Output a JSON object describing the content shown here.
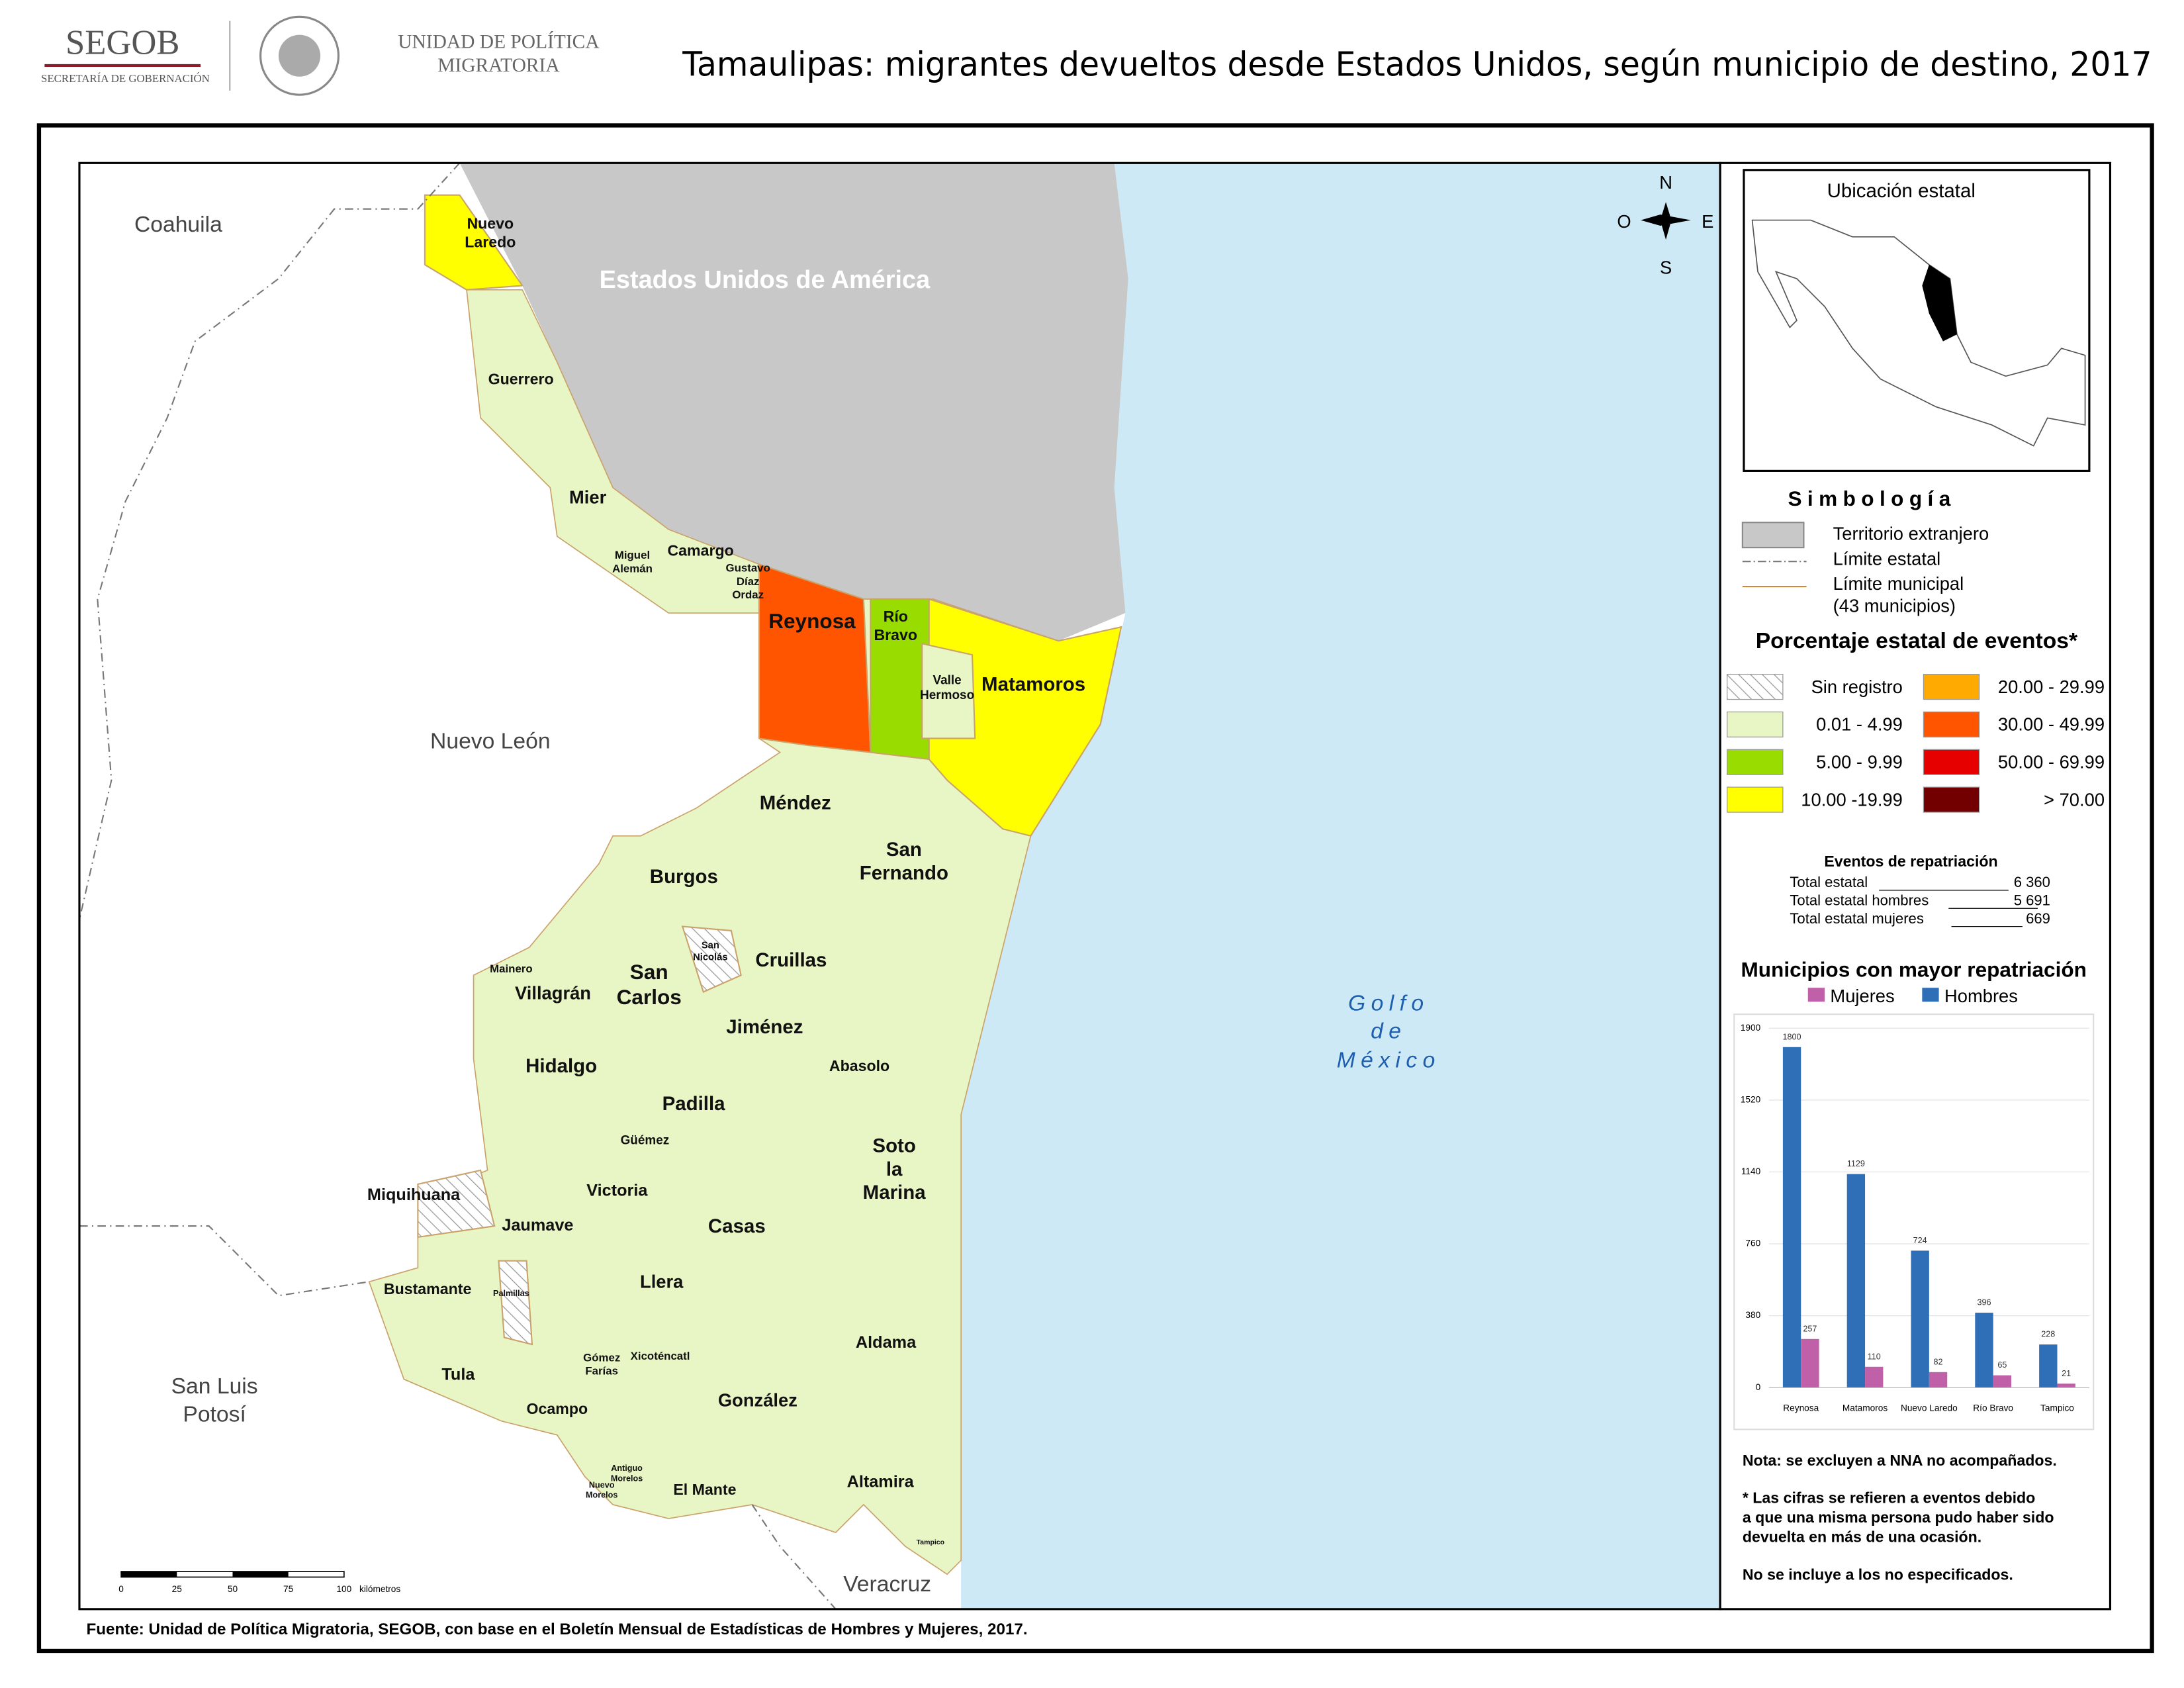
{
  "header": {
    "org": "SEGOB",
    "org_sub": "SECRETARÍA DE GOBERNACIÓN",
    "unit": [
      "UNIDAD DE POLÍTICA",
      "MIGRATORIA"
    ],
    "title": "Tamaulipas: migrantes devueltos desde Estados Unidos, según municipio de destino, 2017"
  },
  "map": {
    "regions": {
      "coahuila": "Coahuila",
      "nuevo_leon": "Nuevo León",
      "slp": [
        "San Luis",
        "Potosí"
      ],
      "veracruz": "Veracruz",
      "usa": "Estados Unidos de América",
      "gulf": [
        "Golfo",
        "de",
        "México"
      ]
    },
    "labels": [
      [
        "Nuevo",
        "Laredo"
      ],
      [
        "Guerrero"
      ],
      [
        "Mier"
      ],
      [
        "Miguel",
        "Alemán"
      ],
      [
        "Camargo"
      ],
      [
        "Gustavo",
        "Díaz",
        "Ordaz"
      ],
      [
        "Reynosa"
      ],
      [
        "Río",
        "Bravo"
      ],
      [
        "Valle",
        "Hermoso"
      ],
      [
        "Matamoros"
      ],
      [
        "Méndez"
      ],
      [
        "San",
        "Fernando"
      ],
      [
        "Burgos"
      ],
      [
        "San",
        "Nicolás"
      ],
      [
        "Cruillas"
      ],
      [
        "Mainero"
      ],
      [
        "Villagrán"
      ],
      [
        "San",
        "Carlos"
      ],
      [
        "Jiménez"
      ],
      [
        "Hidalgo"
      ],
      [
        "Abasolo"
      ],
      [
        "Padilla"
      ],
      [
        "Güémez"
      ],
      [
        "Soto",
        "la",
        "Marina"
      ],
      [
        "Miquihuana"
      ],
      [
        "Victoria"
      ],
      [
        "Jaumave"
      ],
      [
        "Casas"
      ],
      [
        "Bustamante"
      ],
      [
        "Palmillas"
      ],
      [
        "Llera"
      ],
      [
        "Aldama"
      ],
      [
        "Gómez",
        "Farías"
      ],
      [
        "Xicoténcatl"
      ],
      [
        "Tula"
      ],
      [
        "González"
      ],
      [
        "Ocampo"
      ],
      [
        "Antiguo",
        "Morelos"
      ],
      [
        "Nuevo",
        "Morelos"
      ],
      [
        "El Mante"
      ],
      [
        "Altamira"
      ],
      [
        "Tampico"
      ]
    ],
    "compass": {
      "n": "N",
      "s": "S",
      "e": "E",
      "w": "O"
    },
    "scale": [
      "0",
      "25",
      "50",
      "75",
      "100",
      "kilómetros"
    ]
  },
  "inset": {
    "title": "Ubicación estatal"
  },
  "legend": {
    "title": "Simbología",
    "items": [
      [
        "Territorio extranjero"
      ],
      [
        "Límite estatal"
      ],
      [
        "Límite municipal",
        "(43 municipios)"
      ]
    ],
    "classes_title": "Porcentaje estatal de eventos*",
    "classes": [
      {
        "label": "Sin registro"
      },
      {
        "label": "0.01  - 4.99",
        "color": "#e8f5c4"
      },
      {
        "label": "5.00  - 9.99",
        "color": "#99dd00"
      },
      {
        "label": "10.00 -19.99",
        "color": "#ffff00"
      },
      {
        "label": "20.00 - 29.99",
        "color": "#ffaa00"
      },
      {
        "label": "30.00 - 49.99",
        "color": "#ff5500"
      },
      {
        "label": "50.00 - 69.99",
        "color": "#e60000"
      },
      {
        "label": "> 70.00",
        "color": "#730000"
      }
    ]
  },
  "stats": {
    "title": "Eventos de repatriación",
    "rows": [
      [
        "Total estatal",
        "6 360"
      ],
      [
        "Total estatal hombres",
        "5 691"
      ],
      [
        "Total estatal mujeres",
        "669"
      ]
    ]
  },
  "chart_data": {
    "type": "bar",
    "title": "Municipios con mayor repatriación",
    "categories": [
      "Reynosa",
      "Matamoros",
      "Nuevo Laredo",
      "Río Bravo",
      "Tampico"
    ],
    "series": [
      {
        "name": "Mujeres",
        "color": "#c060a8",
        "values": [
          257,
          110,
          82,
          65,
          21
        ]
      },
      {
        "name": "Hombres",
        "color": "#2e6fb7",
        "values": [
          1800,
          1129,
          724,
          396,
          228
        ]
      }
    ],
    "ylim": [
      0,
      1900
    ],
    "yticks": [
      0,
      380,
      760,
      1140,
      1520,
      1900
    ],
    "grid": true
  },
  "notes": [
    "Nota: se excluyen a NNA no acompañados.",
    [
      "* Las cifras se refieren a eventos debido",
      "a que una misma persona pudo haber sido",
      "devuelta en más de una ocasión."
    ],
    "No se incluye a los no especificados."
  ],
  "source": "Fuente: Unidad de Política Migratoria, SEGOB, con base en el Boletín Mensual de Estadísticas de Hombres y Mujeres, 2017."
}
